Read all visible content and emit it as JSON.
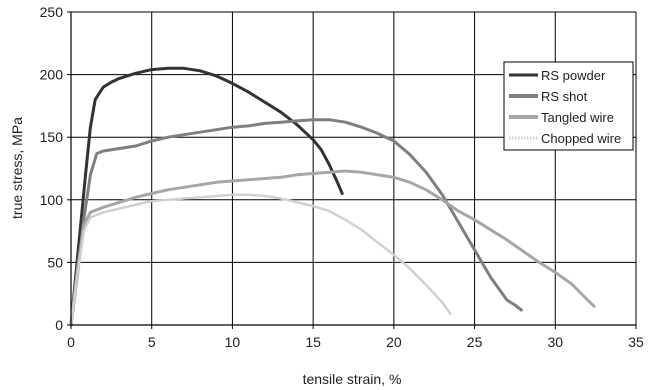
{
  "chart_data": {
    "type": "line",
    "title": "",
    "xlabel": "tensile strain, %",
    "ylabel": "true stress, MPa",
    "xlim": [
      0,
      35
    ],
    "ylim": [
      0,
      250
    ],
    "xticks": [
      0,
      5,
      10,
      15,
      20,
      25,
      30,
      35
    ],
    "yticks": [
      0,
      50,
      100,
      150,
      200,
      250
    ],
    "grid": true,
    "legend_position": "right",
    "series": [
      {
        "name": "RS powder",
        "color": "#333333",
        "style": "solid",
        "x": [
          0,
          0.3,
          0.6,
          0.9,
          1.2,
          1.5,
          2,
          2.5,
          3,
          4,
          5,
          6,
          7,
          8,
          9,
          10,
          11,
          12,
          13,
          14,
          15,
          15.5,
          16,
          16.5,
          16.8
        ],
        "y": [
          0,
          40,
          80,
          120,
          158,
          180,
          190,
          194,
          197,
          201,
          204,
          205,
          205,
          203,
          199,
          193,
          186,
          178,
          170,
          160,
          148,
          140,
          128,
          114,
          105
        ]
      },
      {
        "name": "RS shot",
        "color": "#7f7f7f",
        "style": "solid",
        "x": [
          0,
          0.4,
          0.8,
          1.2,
          1.6,
          2,
          3,
          4,
          5,
          6,
          7,
          8,
          9,
          10,
          11,
          12,
          13,
          14,
          15,
          16,
          17,
          18,
          19,
          20,
          21,
          22,
          23,
          24,
          25,
          26,
          27,
          27.5,
          27.9
        ],
        "y": [
          0,
          40,
          85,
          120,
          137,
          139,
          141,
          143,
          147,
          150,
          152,
          154,
          156,
          158,
          159,
          161,
          162,
          163,
          164,
          164,
          162,
          158,
          153,
          147,
          136,
          122,
          104,
          82,
          60,
          38,
          20,
          16,
          12
        ]
      },
      {
        "name": "Tangled wire",
        "color": "#a6a6a6",
        "style": "solid",
        "x": [
          0,
          0.4,
          0.8,
          1.2,
          2,
          3,
          4,
          5,
          6,
          7,
          8,
          9,
          10,
          11,
          12,
          13,
          14,
          15,
          16,
          17,
          18,
          19,
          20,
          21,
          22,
          23,
          24,
          25,
          26,
          27,
          28,
          29,
          30,
          31,
          32,
          32.4
        ],
        "y": [
          0,
          45,
          80,
          90,
          94,
          98,
          102,
          105,
          108,
          110,
          112,
          114,
          115,
          116,
          117,
          118,
          120,
          121,
          122,
          123,
          122,
          120,
          118,
          114,
          108,
          100,
          91,
          84,
          76,
          68,
          59,
          50,
          42,
          33,
          20,
          15
        ]
      },
      {
        "name": "Chopped wire",
        "color": "#d0d0d0",
        "style": "dotted",
        "x": [
          0,
          0.4,
          0.8,
          1.2,
          2,
          3,
          4,
          5,
          6,
          7,
          8,
          9,
          10,
          11,
          12,
          13,
          14,
          15,
          16,
          17,
          18,
          19,
          20,
          21,
          22,
          23,
          23.5
        ],
        "y": [
          0,
          40,
          75,
          86,
          90,
          93,
          96,
          99,
          100,
          101,
          102,
          103,
          104,
          104,
          103,
          101,
          98,
          95,
          91,
          84,
          76,
          66,
          56,
          45,
          32,
          18,
          9
        ]
      }
    ]
  }
}
